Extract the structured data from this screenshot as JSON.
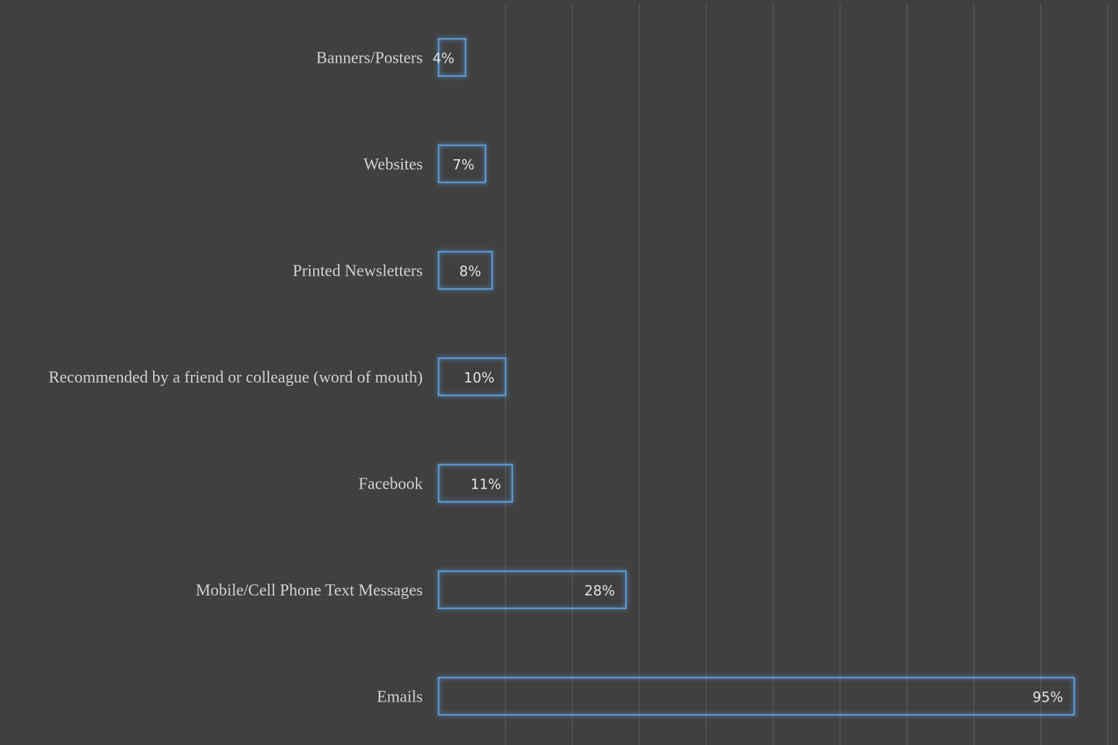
{
  "chart_data": {
    "type": "bar",
    "orientation": "horizontal",
    "title": "",
    "xlabel": "",
    "ylabel": "",
    "categories": [
      "Banners/Posters",
      "Websites",
      "Printed Newsletters",
      "Recommended by a friend or colleague (word of mouth)",
      "Facebook",
      "Mobile/Cell Phone Text Messages",
      "Emails"
    ],
    "values": [
      4,
      7,
      8,
      10,
      11,
      28,
      95
    ],
    "value_labels": [
      "4%",
      "7%",
      "8%",
      "10%",
      "11%",
      "28%",
      "95%"
    ],
    "unit": "%",
    "xlim": [
      0,
      100
    ],
    "grid": true,
    "legend": "none",
    "colors": {
      "background": "#404040",
      "bar_outline": "#5b9bd5",
      "bar_glow": "#5b9bd5",
      "grid": "#5a5a5a",
      "text": "#d0d0d0"
    }
  }
}
